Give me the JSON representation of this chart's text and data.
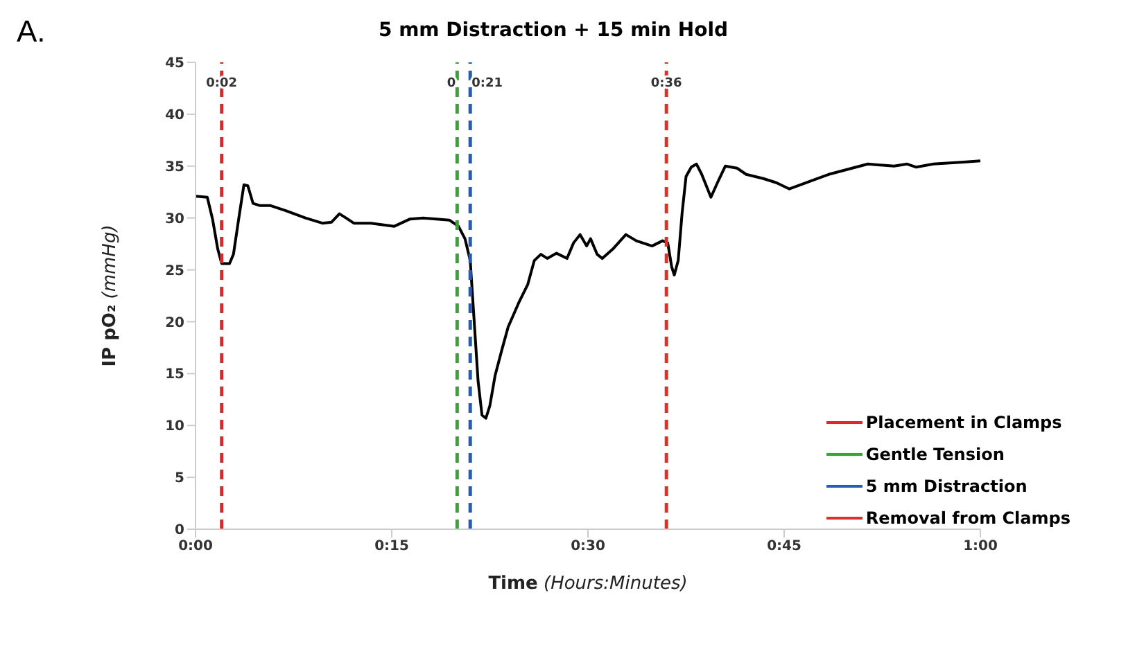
{
  "chart_data": {
    "type": "line",
    "title": "5 mm Distraction + 15 min Hold",
    "xlabel": "Time (Hours:Minutes)",
    "ylabel": "IP pO₂ (mmHg)",
    "annotations": [
      "A.",
      {
        "text": "0:02",
        "x": 2,
        "y": 43
      },
      {
        "text": "0",
        "x": 20,
        "y": 43
      },
      {
        "text": "0:21",
        "x": 21,
        "y": 43
      },
      {
        "text": "0:36",
        "x": 36,
        "y": 43
      }
    ],
    "xlim": [
      0,
      60
    ],
    "xticks": [
      {
        "value": 0,
        "label": "0:00"
      },
      {
        "value": 15,
        "label": "0:15"
      },
      {
        "value": 30,
        "label": "0:30"
      },
      {
        "value": 45,
        "label": "0:45"
      },
      {
        "value": 60,
        "label": "1:00"
      }
    ],
    "ylim": [
      0,
      45
    ],
    "yticks": [
      0,
      5,
      10,
      15,
      20,
      25,
      30,
      35,
      40,
      45
    ],
    "grid": false,
    "legend": "right",
    "marker": "none",
    "series": [
      {
        "color": "#000000",
        "line_style": "solid",
        "x": [
          0,
          0.9,
          1.3,
          1.7,
          2.0,
          2.6,
          2.9,
          3.3,
          3.7,
          4.0,
          4.4,
          4.9,
          5.7,
          6.9,
          8.4,
          9.7,
          10.4,
          11.0,
          11.5,
          12.1,
          13.4,
          15.2,
          16.4,
          17.4,
          19.4,
          20.1,
          20.6,
          21.0,
          21.3,
          21.6,
          21.9,
          22.2,
          22.5,
          22.9,
          23.4,
          23.9,
          24.7,
          25.4,
          25.9,
          26.4,
          26.9,
          27.6,
          28.4,
          28.9,
          29.4,
          29.9,
          30.2,
          30.7,
          31.1,
          31.9,
          32.9,
          33.7,
          34.9,
          35.7,
          36.1,
          36.4,
          36.6,
          36.9,
          37.2,
          37.5,
          37.9,
          38.3,
          38.7,
          39.4,
          39.9,
          40.5,
          41.4,
          42.1,
          43.4,
          44.4,
          45.4,
          46.7,
          48.4,
          49.9,
          51.4,
          53.4,
          54.4,
          55.1,
          56.4,
          58.9,
          60.0
        ],
        "values": [
          32.1,
          32.0,
          29.9,
          27.0,
          25.6,
          25.6,
          26.5,
          29.9,
          33.2,
          33.1,
          31.4,
          31.2,
          31.2,
          30.7,
          30.0,
          29.5,
          29.6,
          30.4,
          30.0,
          29.5,
          29.5,
          29.2,
          29.9,
          30.0,
          29.8,
          29.2,
          28.0,
          25.9,
          20.1,
          14.3,
          11.0,
          10.7,
          11.9,
          14.8,
          17.2,
          19.5,
          21.8,
          23.6,
          25.9,
          26.5,
          26.1,
          26.6,
          26.1,
          27.6,
          28.4,
          27.3,
          28.0,
          26.5,
          26.1,
          27.0,
          28.4,
          27.8,
          27.3,
          27.8,
          27.6,
          25.3,
          24.5,
          25.9,
          30.5,
          34.0,
          34.9,
          35.2,
          34.2,
          32.0,
          33.4,
          35.0,
          34.8,
          34.2,
          33.8,
          33.4,
          32.8,
          33.4,
          34.2,
          34.7,
          35.2,
          35.0,
          35.2,
          34.9,
          35.2,
          35.4,
          35.5
        ]
      },
      {
        "name": "Placement in Clamps",
        "color": "#e0262b",
        "line_style": "dashed",
        "x": [
          2,
          2
        ],
        "values": [
          0,
          45
        ]
      },
      {
        "name": "Gentle Tension",
        "color": "#3aa335",
        "line_style": "dashed",
        "x": [
          20,
          20
        ],
        "values": [
          0,
          45
        ]
      },
      {
        "name": "5 mm Distraction",
        "color": "#2a5caa",
        "line_style": "dashed",
        "x": [
          21,
          21
        ],
        "values": [
          0,
          45
        ]
      },
      {
        "name": "Removal from Clamps",
        "color": "#d9342b",
        "line_style": "dashed",
        "x": [
          36,
          36
        ],
        "values": [
          0,
          45
        ]
      }
    ]
  }
}
